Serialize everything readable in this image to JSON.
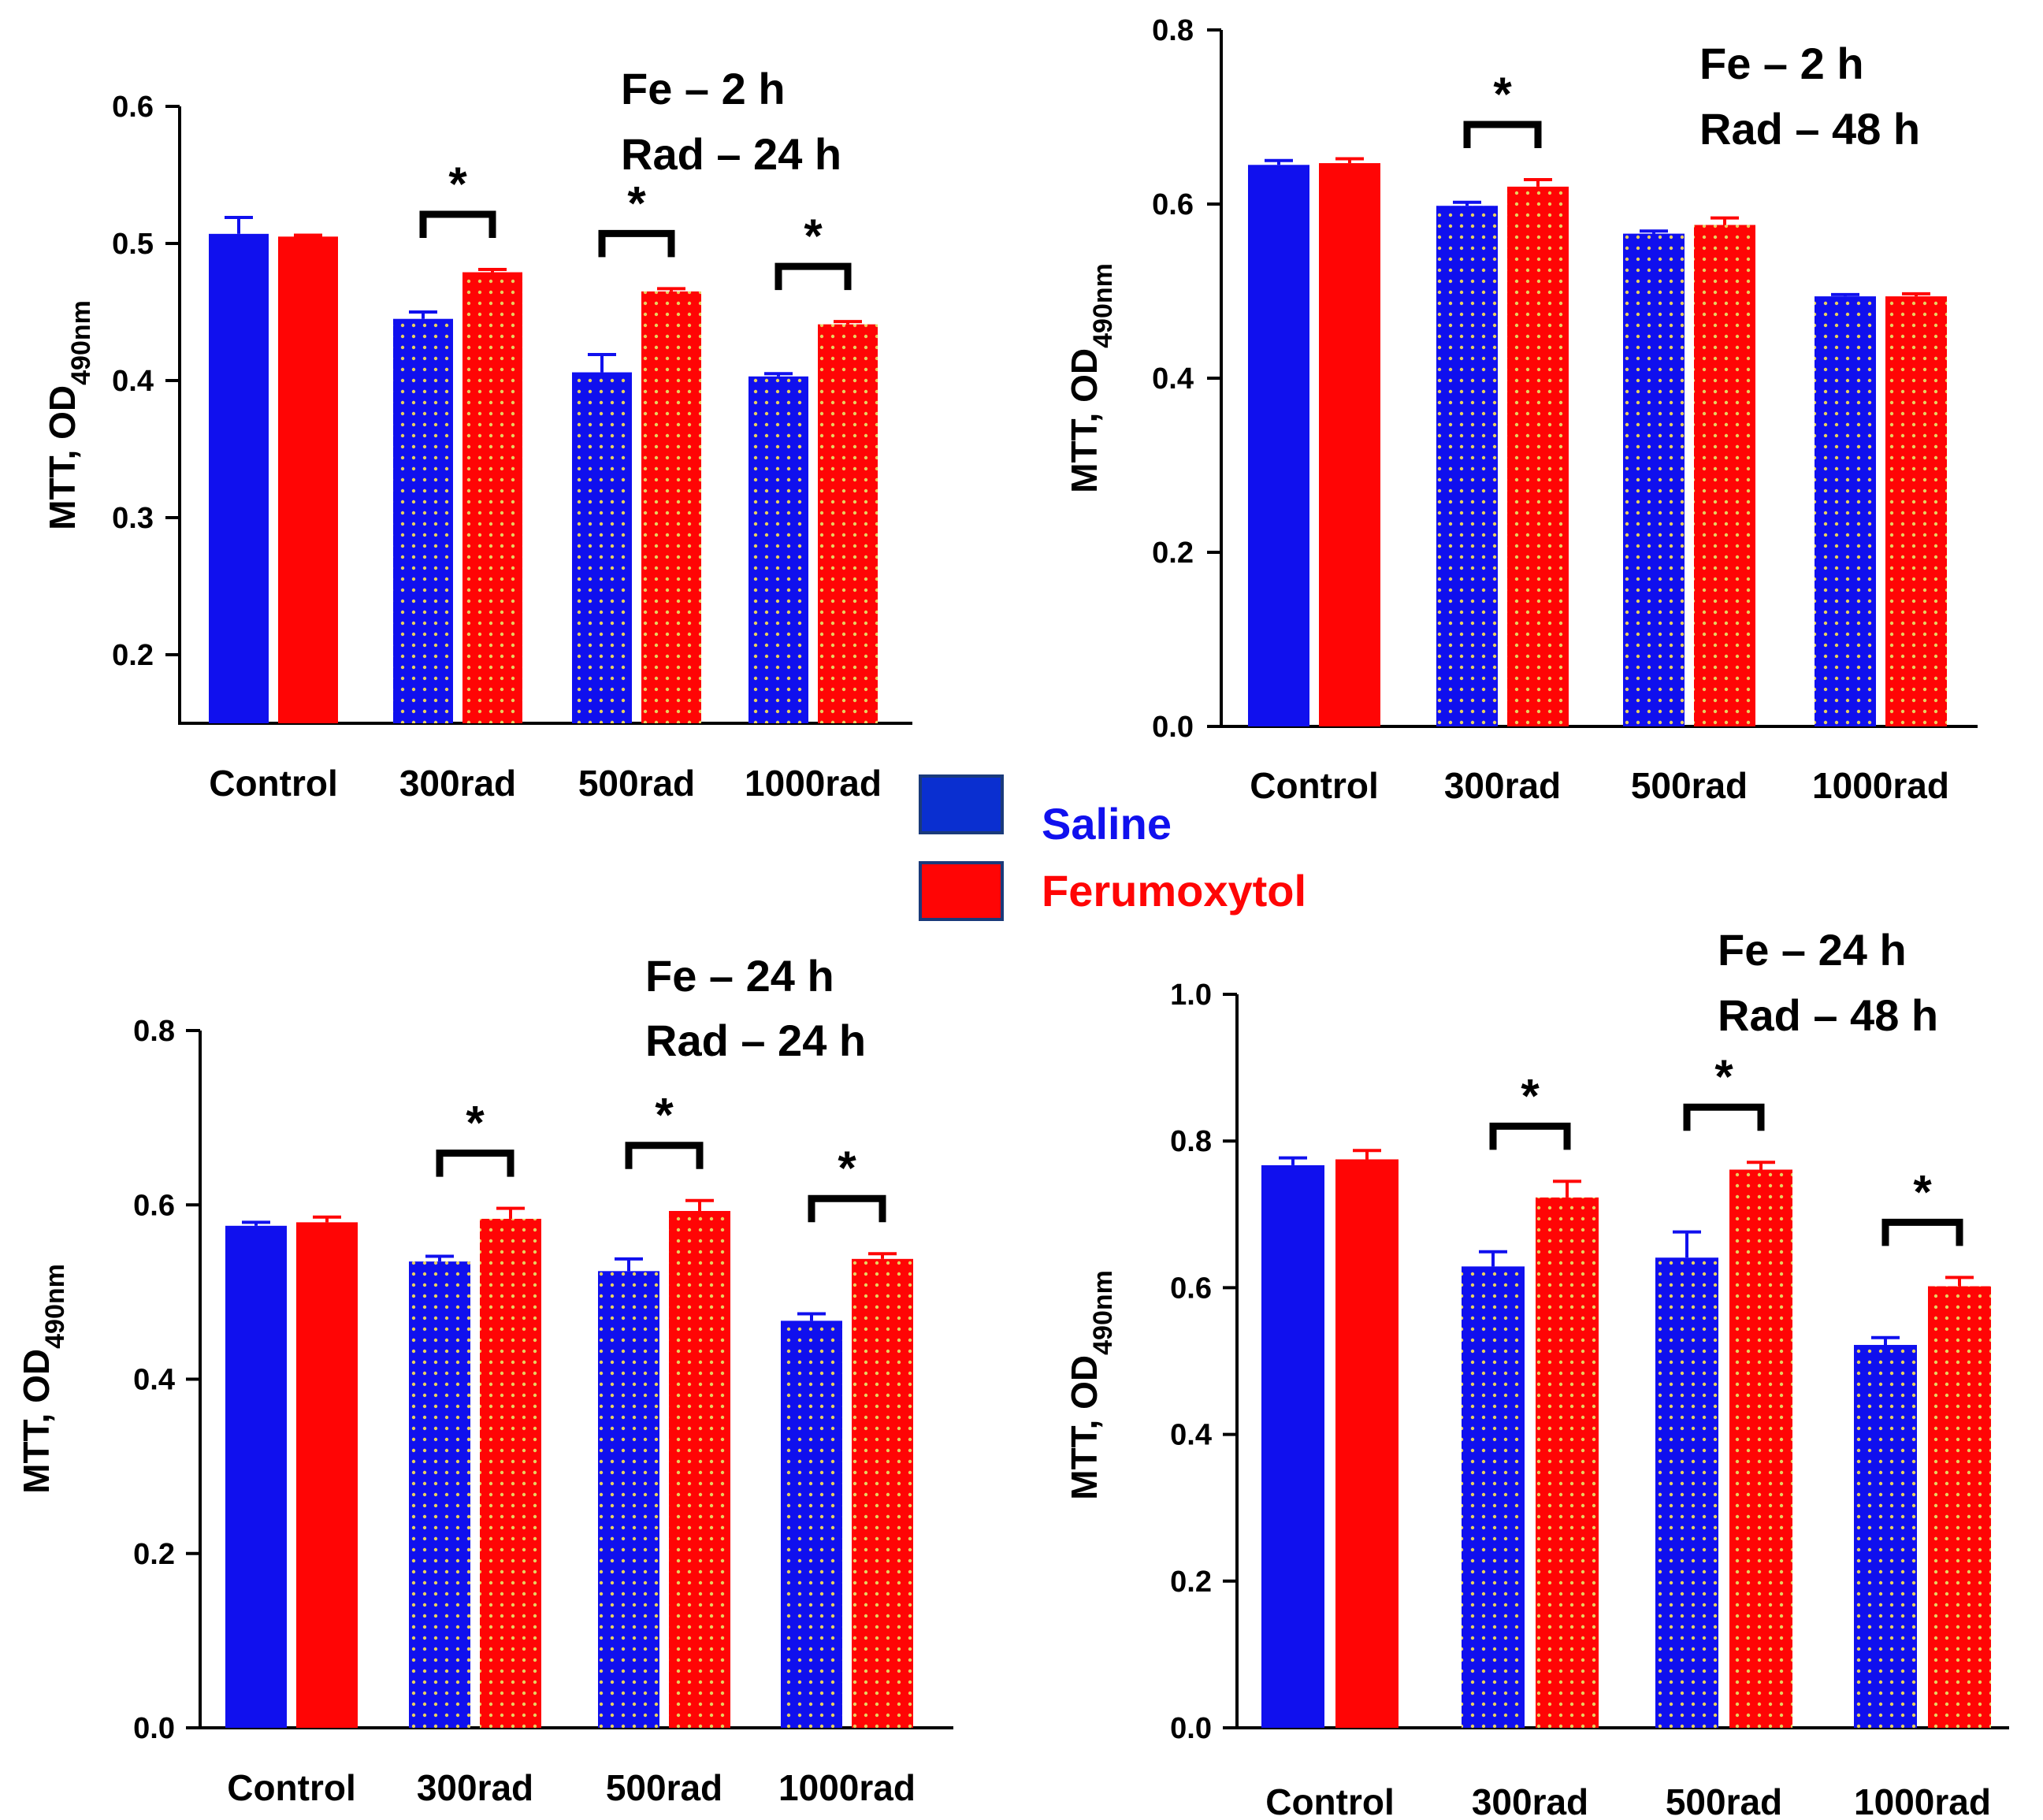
{
  "colors": {
    "saline": "#1010ee",
    "ferumoxytol": "#ff0505",
    "dots": "#e8d060",
    "axis": "#000000"
  },
  "legend": {
    "items": [
      {
        "label": "Saline",
        "color": "#1010ee"
      },
      {
        "label": "Ferumoxytol",
        "color": "#ff0505"
      }
    ]
  },
  "chart_data": [
    {
      "type": "bar",
      "condition": [
        "Fe – 2 h",
        "Rad – 24 h"
      ],
      "ylabel": "MTT, OD",
      "ylabel_sub": "490nm",
      "ylim": [
        0.15,
        0.6
      ],
      "yticks": [
        "0.2",
        "0.3",
        "0.4",
        "0.5",
        "0.6"
      ],
      "categories": [
        "Control",
        "300rad",
        "500rad",
        "1000rad"
      ],
      "series": [
        {
          "name": "Saline",
          "values": [
            0.507,
            0.445,
            0.406,
            0.403
          ],
          "errors": [
            0.012,
            0.005,
            0.013,
            0.002
          ]
        },
        {
          "name": "Ferumoxytol",
          "values": [
            0.505,
            0.479,
            0.465,
            0.441
          ],
          "errors": [
            0.001,
            0.002,
            0.002,
            0.002
          ]
        }
      ],
      "significance": [
        "",
        "*",
        "*",
        "*"
      ]
    },
    {
      "type": "bar",
      "condition": [
        "Fe – 2 h",
        "Rad – 48 h"
      ],
      "ylabel": "MTT, OD",
      "ylabel_sub": "490nm",
      "ylim": [
        0.0,
        0.8
      ],
      "yticks": [
        "0.0",
        "0.2",
        "0.4",
        "0.6",
        "0.8"
      ],
      "categories": [
        "Control",
        "300rad",
        "500rad",
        "1000rad"
      ],
      "series": [
        {
          "name": "Saline",
          "values": [
            0.645,
            0.598,
            0.566,
            0.494
          ],
          "errors": [
            0.005,
            0.004,
            0.003,
            0.002
          ]
        },
        {
          "name": "Ferumoxytol",
          "values": [
            0.647,
            0.62,
            0.576,
            0.494
          ],
          "errors": [
            0.005,
            0.008,
            0.008,
            0.003
          ]
        }
      ],
      "significance": [
        "",
        "*",
        "",
        ""
      ]
    },
    {
      "type": "bar",
      "condition": [
        "Fe – 24 h",
        "Rad – 24 h"
      ],
      "ylabel": "MTT, OD",
      "ylabel_sub": "490nm",
      "ylim": [
        0.0,
        0.8
      ],
      "yticks": [
        "0.0",
        "0.2",
        "0.4",
        "0.6",
        "0.8"
      ],
      "categories": [
        "Control",
        "300rad",
        "500rad",
        "1000rad"
      ],
      "series": [
        {
          "name": "Saline",
          "values": [
            0.576,
            0.535,
            0.524,
            0.467
          ],
          "errors": [
            0.004,
            0.006,
            0.014,
            0.008
          ]
        },
        {
          "name": "Ferumoxytol",
          "values": [
            0.58,
            0.584,
            0.593,
            0.538
          ],
          "errors": [
            0.006,
            0.012,
            0.012,
            0.006
          ]
        }
      ],
      "significance": [
        "",
        "*",
        "*",
        "*"
      ]
    },
    {
      "type": "bar",
      "condition": [
        "Fe – 24 h",
        "Rad – 48 h"
      ],
      "ylabel": "MTT, OD",
      "ylabel_sub": "490nm",
      "ylim": [
        0.0,
        1.0
      ],
      "yticks": [
        "0.0",
        "0.2",
        "0.4",
        "0.6",
        "0.8",
        "1.0"
      ],
      "categories": [
        "Control",
        "300rad",
        "500rad",
        "1000rad"
      ],
      "series": [
        {
          "name": "Saline",
          "values": [
            0.767,
            0.629,
            0.641,
            0.522
          ],
          "errors": [
            0.01,
            0.02,
            0.035,
            0.01
          ]
        },
        {
          "name": "Ferumoxytol",
          "values": [
            0.775,
            0.723,
            0.761,
            0.602
          ],
          "errors": [
            0.012,
            0.022,
            0.01,
            0.012
          ]
        }
      ],
      "significance": [
        "",
        "*",
        "*",
        "*"
      ]
    }
  ]
}
